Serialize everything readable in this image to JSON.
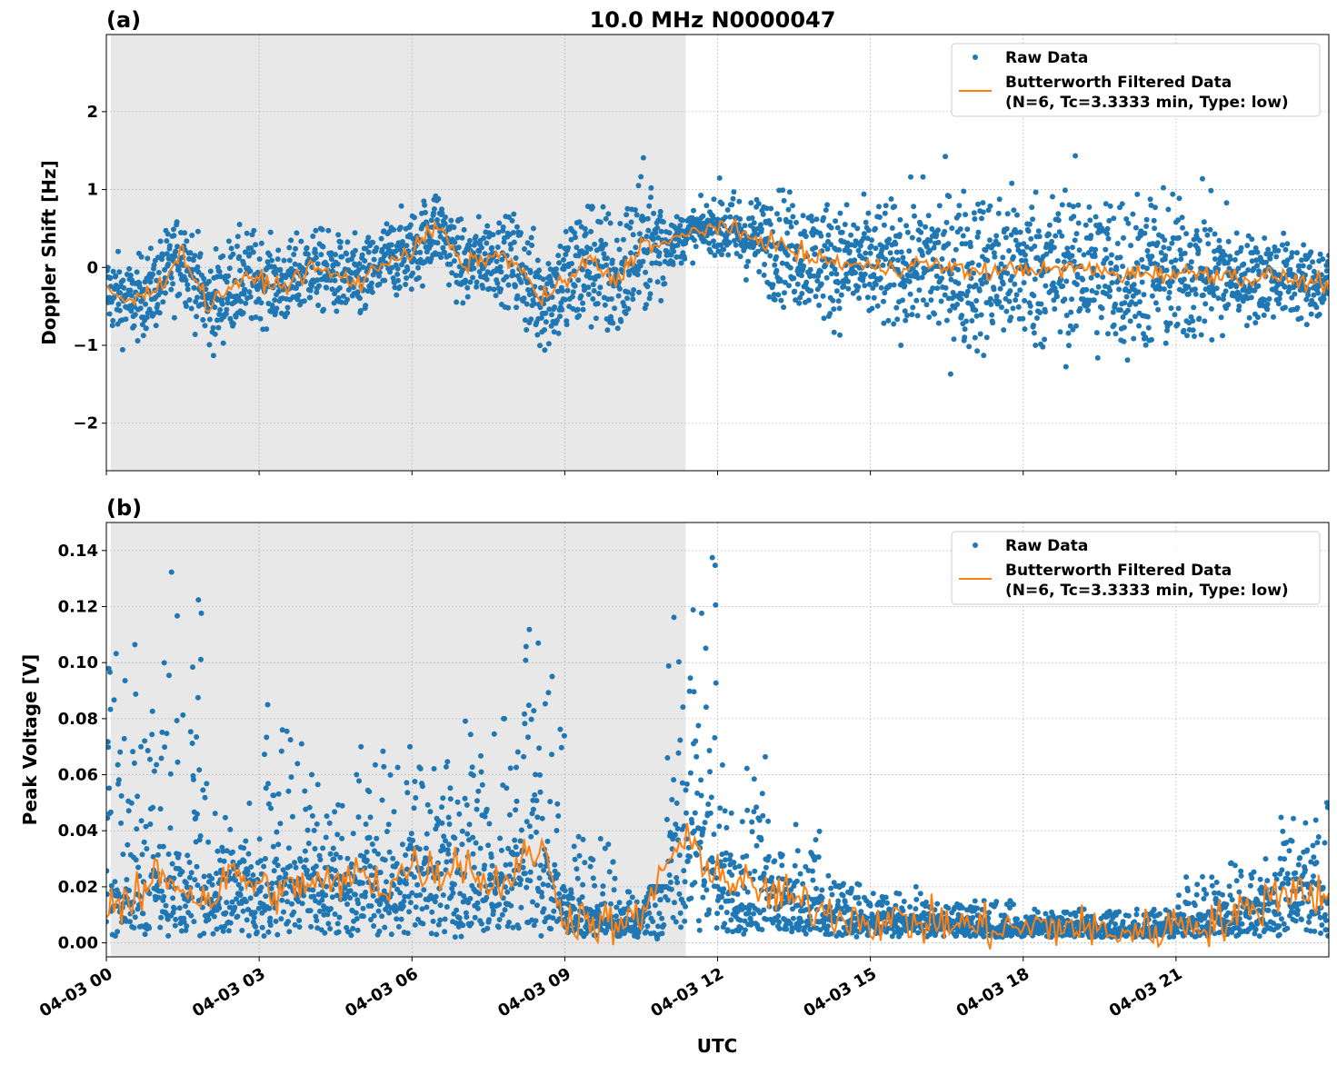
{
  "title": "10.0 MHz N0000047",
  "xlabel": "UTC",
  "x_tick_labels": [
    "04-03 00",
    "04-03 03",
    "04-03 06",
    "04-03 09",
    "04-03 12",
    "04-03 15",
    "04-03 18",
    "04-03 21"
  ],
  "legend": {
    "raw": "Raw Data",
    "filtered_line1": "Butterworth Filtered Data",
    "filtered_line2": "(N=6, Tc=3.3333 min, Type: low)"
  },
  "colors": {
    "raw": "#1f77b4",
    "filtered": "#ff7f0e",
    "shading": "#e8e8e8"
  },
  "chart_data": [
    {
      "type": "scatter+line",
      "panel_label": "(a)",
      "ylabel": "Doppler Shift [Hz]",
      "xlim_hours": [
        0,
        24
      ],
      "ylim": [
        -2.61,
        2.99
      ],
      "y_ticks": [
        -2,
        -1,
        0,
        1,
        2
      ],
      "y_tick_labels": [
        "−2",
        "−1",
        "0",
        "1",
        "2"
      ],
      "grid": true,
      "legend_placement": "top-right",
      "shaded_region_hours": [
        0.09,
        11.375
      ],
      "filtered_hours": [
        0,
        0.5,
        1,
        1.5,
        2,
        2.5,
        3,
        3.5,
        4,
        4.5,
        5,
        5.5,
        6,
        6.5,
        7,
        7.5,
        8,
        8.5,
        9,
        9.5,
        10,
        10.5,
        11,
        11.5,
        12,
        12.5,
        13,
        13.5,
        14,
        14.5,
        15,
        15.5,
        16,
        16.5,
        17,
        17.5,
        18,
        18.5,
        19,
        19.5,
        20,
        20.5,
        21,
        21.5,
        22,
        22.5,
        23,
        23.5,
        24
      ],
      "filtered_values": [
        -0.3,
        -0.45,
        -0.25,
        0.2,
        -0.5,
        -0.2,
        -0.15,
        -0.25,
        0.0,
        -0.1,
        -0.2,
        0.1,
        0.2,
        0.55,
        0.0,
        0.15,
        0.1,
        -0.4,
        -0.2,
        0.1,
        -0.2,
        0.3,
        0.3,
        0.45,
        0.55,
        0.4,
        0.35,
        0.2,
        0.1,
        0.05,
        0.0,
        0.0,
        0.05,
        0.0,
        -0.05,
        -0.05,
        0.0,
        -0.05,
        0.0,
        -0.05,
        -0.1,
        -0.05,
        -0.1,
        -0.05,
        -0.1,
        -0.15,
        -0.1,
        -0.2,
        -0.2
      ],
      "raw_spread_by_hour": [
        0.5,
        0.55,
        0.6,
        0.5,
        0.5,
        0.5,
        0.5,
        0.5,
        0.7,
        0.85,
        0.85,
        0.3,
        0.5,
        0.7,
        0.75,
        0.8,
        1.0,
        1.0,
        1.0,
        1.05,
        1.0,
        0.9,
        0.55,
        0.5
      ]
    },
    {
      "type": "scatter+line",
      "panel_label": "(b)",
      "ylabel": "Peak Voltage [V]",
      "xlim_hours": [
        0,
        24
      ],
      "ylim": [
        -0.005,
        0.15
      ],
      "y_ticks": [
        0,
        0.02,
        0.04,
        0.06,
        0.08,
        0.1,
        0.12,
        0.14
      ],
      "y_tick_labels": [
        "0.00",
        "0.02",
        "0.04",
        "0.06",
        "0.08",
        "0.10",
        "0.12",
        "0.14"
      ],
      "grid": true,
      "legend_placement": "top-right",
      "shaded_region_hours": [
        0.09,
        11.375
      ],
      "filtered_hours": [
        0,
        0.5,
        1,
        1.5,
        2,
        2.5,
        3,
        3.5,
        4,
        4.5,
        5,
        5.5,
        6,
        6.5,
        7,
        7.5,
        8,
        8.5,
        9,
        9.5,
        10,
        10.5,
        11,
        11.5,
        12,
        12.5,
        13,
        13.5,
        14,
        14.5,
        15,
        15.5,
        16,
        16.5,
        17,
        17.5,
        18,
        18.5,
        19,
        19.5,
        20,
        20.5,
        21,
        21.5,
        22,
        22.5,
        23,
        23.5,
        24
      ],
      "filtered_values": [
        0.015,
        0.012,
        0.025,
        0.02,
        0.015,
        0.025,
        0.02,
        0.018,
        0.022,
        0.02,
        0.025,
        0.02,
        0.028,
        0.025,
        0.03,
        0.02,
        0.025,
        0.035,
        0.01,
        0.008,
        0.006,
        0.008,
        0.03,
        0.035,
        0.025,
        0.02,
        0.018,
        0.015,
        0.012,
        0.01,
        0.008,
        0.008,
        0.007,
        0.007,
        0.006,
        0.005,
        0.005,
        0.006,
        0.006,
        0.004,
        0.004,
        0.004,
        0.007,
        0.007,
        0.008,
        0.012,
        0.018,
        0.02,
        0.015
      ],
      "raw_max_by_hour": [
        0.11,
        0.135,
        0.05,
        0.085,
        0.06,
        0.07,
        0.065,
        0.08,
        0.115,
        0.04,
        0.02,
        0.143,
        0.07,
        0.047,
        0.025,
        0.02,
        0.015,
        0.015,
        0.012,
        0.012,
        0.012,
        0.025,
        0.03,
        0.05
      ],
      "raw_min": 0.002
    }
  ]
}
